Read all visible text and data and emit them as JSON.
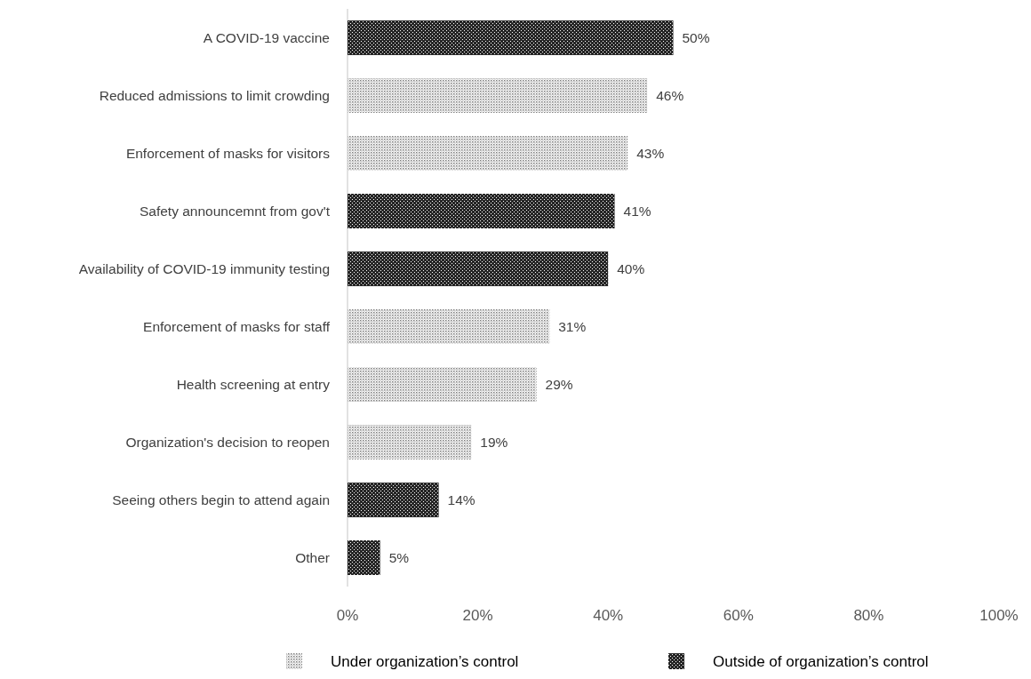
{
  "chart_data": {
    "type": "bar",
    "orientation": "horizontal",
    "categories": [
      "A COVID-19 vaccine",
      "Reduced admissions to limit crowding",
      "Enforcement of masks for visitors",
      "Safety announcemnt from gov't",
      "Availability of COVID-19 immunity testing",
      "Enforcement of masks for staff",
      "Health screening at entry",
      "Organization's decision to reopen",
      "Seeing others begin to attend again",
      "Other"
    ],
    "series": [
      {
        "name": "Under organization’s control",
        "color": "#7f7f7f",
        "values": [
          null,
          46,
          43,
          null,
          null,
          31,
          29,
          19,
          null,
          null
        ],
        "value_labels": [
          null,
          "46%",
          "43%",
          null,
          null,
          "31%",
          "29%",
          "19%",
          null,
          null
        ]
      },
      {
        "name": "Outside of organization’s control",
        "color": "#262626",
        "values": [
          50,
          null,
          null,
          41,
          40,
          null,
          null,
          null,
          14,
          5
        ],
        "value_labels": [
          "50%",
          null,
          null,
          "41%",
          "40%",
          null,
          null,
          null,
          "14%",
          "5%"
        ]
      }
    ],
    "xlim": [
      0,
      100
    ],
    "xticks": [
      {
        "value": 0,
        "label": "0%"
      },
      {
        "value": 20,
        "label": "20%"
      },
      {
        "value": 40,
        "label": "40%"
      },
      {
        "value": 60,
        "label": "60%"
      },
      {
        "value": 80,
        "label": "80%"
      },
      {
        "value": 100,
        "label": "100%"
      }
    ],
    "grid": false,
    "legend": "bottom"
  }
}
